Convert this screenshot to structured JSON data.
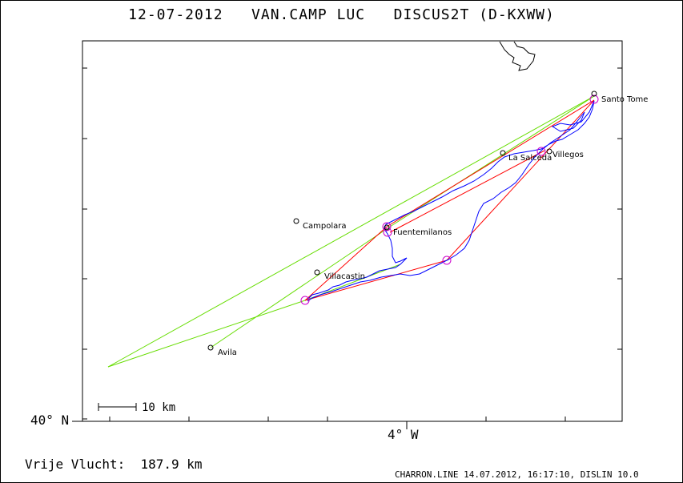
{
  "header": {
    "date": "12-07-2012",
    "pilot": "VAN.CAMP LUC",
    "glider": "DISCUS2T (D-KXWW)"
  },
  "axes": {
    "lat_label": "40° N",
    "lon_label": "4° W"
  },
  "scale_bar": {
    "label": "10 km"
  },
  "summary": {
    "label": "Vrije Vlucht:",
    "distance": "187.9 km"
  },
  "footer": {
    "text": "CHARRON.LINE 14.07.2012, 16:17:10, DISLIN 10.0"
  },
  "places": [
    {
      "name": "Santo Tome"
    },
    {
      "name": "Villegos"
    },
    {
      "name": "La Salceda"
    },
    {
      "name": "Campolara"
    },
    {
      "name": "Fuentemilanos"
    },
    {
      "name": "Villacastin"
    },
    {
      "name": "Avila"
    }
  ],
  "colors": {
    "track": "#0000ff",
    "task_line": "#ff0000",
    "free_flight": "#66dd00",
    "turnpoint": "#cc00cc"
  }
}
